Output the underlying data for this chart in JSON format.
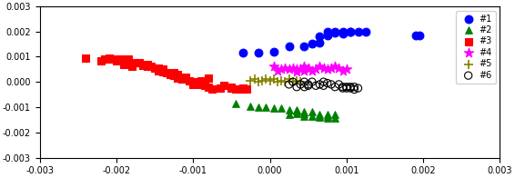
{
  "xlim": [
    -0.003,
    0.003
  ],
  "ylim": [
    -0.003,
    0.003
  ],
  "xticks": [
    -0.003,
    -0.002,
    -0.001,
    0.0,
    0.001,
    0.002,
    0.003
  ],
  "yticks": [
    -0.003,
    -0.002,
    -0.001,
    0.0,
    0.001,
    0.002,
    0.003
  ],
  "series": [
    {
      "label": "#1",
      "color": "blue",
      "marker": "o",
      "ms": 40,
      "x": [
        -0.00035,
        -0.00015,
        5e-05,
        0.00025,
        0.00045,
        0.00055,
        0.00065,
        0.00065,
        0.00075,
        0.00075,
        0.00085,
        0.00085,
        0.00095,
        0.00095,
        0.00105,
        0.00105,
        0.00115,
        0.00125,
        0.0019,
        0.00195
      ],
      "y": [
        0.00115,
        0.00115,
        0.0012,
        0.0014,
        0.0014,
        0.0015,
        0.00155,
        0.0018,
        0.00185,
        0.002,
        0.002,
        0.00195,
        0.002,
        0.0019,
        0.002,
        0.002,
        0.002,
        0.002,
        0.00185,
        0.00185
      ]
    },
    {
      "label": "#2",
      "color": "green",
      "marker": "^",
      "ms": 30,
      "x": [
        -0.00045,
        -0.00025,
        -0.00015,
        -5e-05,
        5e-05,
        0.00015,
        0.00025,
        0.00025,
        0.00035,
        0.00035,
        0.00035,
        0.00045,
        0.00045,
        0.00045,
        0.00055,
        0.00055,
        0.00065,
        0.00065,
        0.00065,
        0.00075,
        0.00075,
        0.00075,
        0.00085,
        0.00085
      ],
      "y": [
        -0.00085,
        -0.00095,
        -0.001,
        -0.001,
        -0.00105,
        -0.00105,
        -0.0011,
        -0.0013,
        -0.0011,
        -0.00115,
        -0.00125,
        -0.0012,
        -0.00125,
        -0.00135,
        -0.0012,
        -0.00135,
        -0.0013,
        -0.00135,
        -0.0014,
        -0.0013,
        -0.00135,
        -0.00145,
        -0.0013,
        -0.00145
      ]
    },
    {
      "label": "#3",
      "color": "red",
      "marker": "s",
      "ms": 35,
      "x": [
        -0.0024,
        -0.0022,
        -0.00215,
        -0.0021,
        -0.00205,
        -0.002,
        -0.00195,
        -0.0019,
        -0.00185,
        -0.00185,
        -0.0018,
        -0.00175,
        -0.0017,
        -0.00165,
        -0.0016,
        -0.0016,
        -0.00155,
        -0.0015,
        -0.00145,
        -0.00145,
        -0.0014,
        -0.0014,
        -0.00135,
        -0.0013,
        -0.00125,
        -0.00125,
        -0.0012,
        -0.0012,
        -0.00115,
        -0.0011,
        -0.00105,
        -0.001,
        -0.001,
        -0.00095,
        -0.0009,
        -0.0009,
        -0.00085,
        -0.00085,
        -0.0008,
        -0.0008,
        -0.00075,
        -0.00065,
        -0.0006,
        -0.0005,
        -0.0005,
        -0.00045,
        -0.0004,
        -0.00035,
        -0.00035,
        -0.0003
      ],
      "y": [
        0.00095,
        0.00085,
        0.0009,
        0.00095,
        0.0009,
        0.00085,
        0.0009,
        0.0007,
        0.00075,
        0.0009,
        0.0006,
        0.00075,
        0.00075,
        0.00065,
        0.0006,
        0.0007,
        0.0006,
        0.00055,
        0.00045,
        0.00055,
        0.0004,
        0.0005,
        0.00035,
        0.0003,
        0.00025,
        0.00035,
        0.00015,
        0.0003,
        0.0001,
        0.0002,
        5e-05,
        0.0,
        -0.0001,
        -5e-05,
        5e-05,
        -0.0001,
        -5e-05,
        -0.00015,
        0.00015,
        -0.0002,
        -0.0003,
        -0.00025,
        -0.00015,
        -0.0002,
        -0.00025,
        -0.0003,
        -0.0003,
        -0.00025,
        -0.0003,
        -0.0003
      ]
    },
    {
      "label": "#4",
      "color": "magenta",
      "marker": "*",
      "ms": 60,
      "x": [
        5e-05,
        0.0001,
        0.00015,
        0.0002,
        0.00025,
        0.0003,
        0.00035,
        0.00035,
        0.0004,
        0.00045,
        0.00045,
        0.0005,
        0.0005,
        0.00055,
        0.0006,
        0.00065,
        0.0007,
        0.00075,
        0.0008,
        0.00085,
        0.0009,
        0.00095,
        0.001
      ],
      "y": [
        0.0006,
        0.00045,
        0.0005,
        0.00055,
        0.0005,
        0.00055,
        0.0004,
        0.0005,
        0.0005,
        0.00045,
        0.0006,
        0.0005,
        0.00055,
        0.00045,
        0.0005,
        0.0006,
        0.00055,
        0.0005,
        0.00055,
        0.0006,
        0.00055,
        0.00045,
        0.0005
      ]
    },
    {
      "label": "#5",
      "color": "#808000",
      "marker": "+",
      "ms": 45,
      "x": [
        -0.00025,
        -0.0002,
        -0.00015,
        -0.0001,
        -5e-05,
        0.0,
        5e-05,
        0.0001,
        0.00015,
        0.0002,
        0.00025,
        0.0003,
        0.00035,
        0.0004
      ],
      "y": [
        5e-05,
        0.0001,
        0.0,
        5e-05,
        0.0001,
        5e-05,
        0.0001,
        0.0,
        5e-05,
        0.0,
        0.0001,
        0.0,
        5e-05,
        0.0
      ]
    },
    {
      "label": "#6",
      "color": "black",
      "marker": "o",
      "ms": 35,
      "facecolor": "none",
      "x": [
        0.00025,
        0.0003,
        0.00035,
        0.0004,
        0.00045,
        0.00045,
        0.0005,
        0.0005,
        0.00055,
        0.0006,
        0.00065,
        0.0007,
        0.0007,
        0.00075,
        0.0008,
        0.00085,
        0.0009,
        0.00095,
        0.00095,
        0.001,
        0.001,
        0.00105,
        0.00105,
        0.0011,
        0.0011,
        0.00115
      ],
      "y": [
        -0.0001,
        0.0,
        -0.0002,
        -0.0001,
        0.0,
        -0.0002,
        -0.0001,
        -0.00015,
        0.0,
        -0.00015,
        -0.0001,
        0.0,
        -0.00015,
        -5e-05,
        -0.0001,
        -0.0002,
        -0.0001,
        -0.0002,
        -0.00025,
        -0.0002,
        -0.00025,
        -0.0002,
        -0.00025,
        -0.0002,
        -0.0003,
        -0.00025
      ]
    }
  ]
}
